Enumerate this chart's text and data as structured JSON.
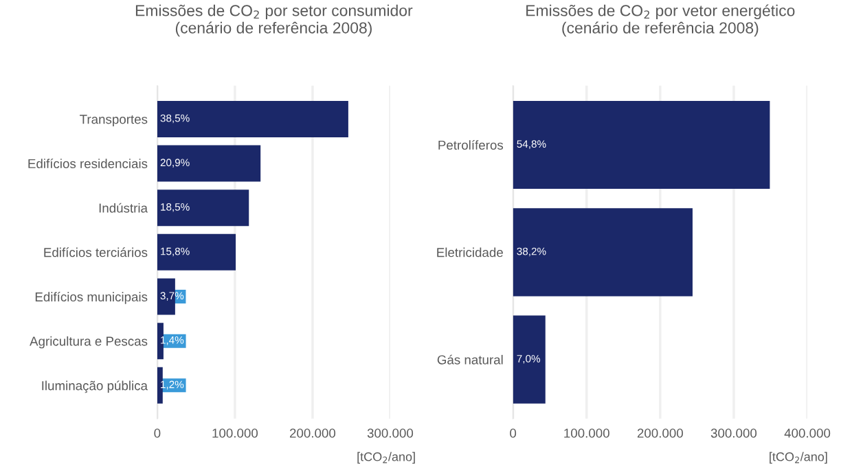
{
  "chart_data": [
    {
      "type": "bar",
      "orientation": "horizontal",
      "title": "Emissões de CO$_{2}$ por setor consumidor\n(cenário de referência 2008)",
      "xlabel": "[tCO$_{2}$/ano]",
      "categories": [
        "Transportes",
        "Edifícios residenciais",
        "Indústria",
        "Edifícios terciários",
        "Edifícios municipais",
        "Agricultura e Pescas",
        "Iluminação pública"
      ],
      "values": [
        246000,
        133000,
        118000,
        101000,
        23000,
        8000,
        7000
      ],
      "annotations": [
        "38,5%",
        "20,9%",
        "18,5%",
        "15,8%",
        "3,7%",
        "1,4%",
        "1,2%"
      ],
      "color": "#1b2869",
      "xlim": [
        0,
        300000
      ],
      "xticks": [
        0,
        {
          "value": 100000,
          "label": "100.000"
        },
        {
          "value": 200000,
          "label": "200.000"
        },
        {
          "value": 300000,
          "label": "300.000"
        }
      ],
      "grid": "x",
      "legend": false
    },
    {
      "type": "bar",
      "orientation": "horizontal",
      "title": "Emissões de CO$_{2}$ por vetor energético\n(cenário de referência 2008)",
      "xlabel": "[tCO$_{2}$/ano]",
      "categories": [
        "Petrolíferos",
        "Eletricidade",
        "Gás natural"
      ],
      "values": [
        349000,
        244000,
        44000
      ],
      "annotations": [
        "54,8%",
        "38,2%",
        "7,0%"
      ],
      "color": "#1b2869",
      "xlim": [
        0,
        400000
      ],
      "xticks": [
        0,
        {
          "value": 100000,
          "label": "100.000"
        },
        {
          "value": 200000,
          "label": "200.000"
        },
        {
          "value": 300000,
          "label": "300.000"
        },
        {
          "value": 400000,
          "label": "400.000"
        }
      ],
      "grid": "x",
      "legend": false
    }
  ]
}
